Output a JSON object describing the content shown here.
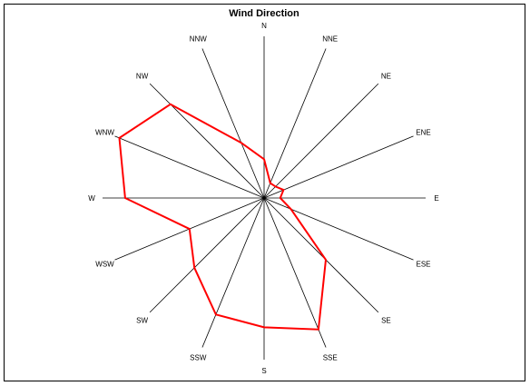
{
  "chart_data": {
    "type": "radar",
    "title": "Wind Direction",
    "categories": [
      "N",
      "NNE",
      "NE",
      "ENE",
      "E",
      "ESE",
      "SE",
      "SSE",
      "S",
      "SSW",
      "SW",
      "WSW",
      "W",
      "WNW",
      "NW",
      "NNW"
    ],
    "series": [
      {
        "color": "#ff0000",
        "values": [
          0.24,
          0.1,
          0.1,
          0.13,
          0.1,
          0.18,
          0.54,
          0.88,
          0.8,
          0.78,
          0.61,
          0.5,
          0.86,
          0.97,
          0.82,
          0.37
        ]
      }
    ],
    "rlim": [
      0,
      1
    ],
    "grid": false,
    "legend": "none"
  }
}
